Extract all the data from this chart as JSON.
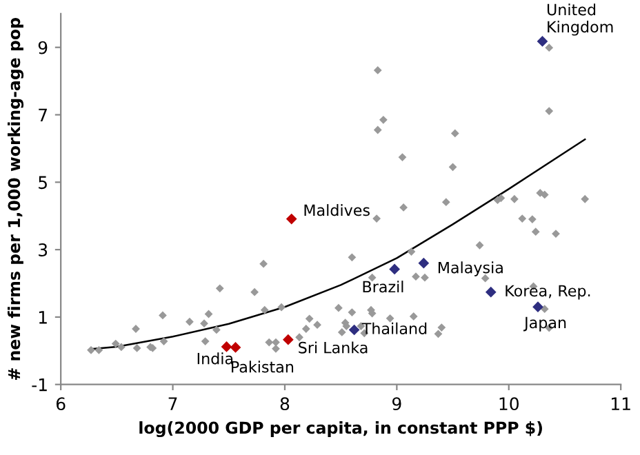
{
  "chart_data": {
    "type": "scatter",
    "xlabel": "log(2000 GDP per capita, in constant PPP $)",
    "ylabel": "# new firms per 1,000 working-age pop",
    "xlim": [
      6,
      11
    ],
    "xticks": [
      6,
      7,
      8,
      9,
      10,
      11
    ],
    "ylim": [
      -1,
      10
    ],
    "yticks": [
      -1,
      1,
      3,
      5,
      7,
      9
    ],
    "grid": false,
    "legend": false,
    "marker": "diamond",
    "series": [
      {
        "color": "#999999",
        "x": [
          8.83,
          8.88,
          8.83,
          9.52,
          9.05,
          9.5,
          9.06,
          8.82,
          9.44,
          9.9,
          9.93,
          10.05,
          10.28,
          10.32,
          10.68,
          10.12,
          10.21,
          10.24,
          10.42,
          10.36,
          10.36,
          8.6,
          9.13,
          9.74,
          8.78,
          9.17,
          9.25,
          9.79,
          10.22,
          10.32,
          10.36,
          8.48,
          8.6,
          8.77,
          8.78,
          8.94,
          9.15,
          8.54,
          8.55,
          8.68,
          8.51,
          8.71,
          9.37,
          9.4,
          6.27,
          6.34,
          6.49,
          6.54,
          6.67,
          6.68,
          6.8,
          6.82,
          6.91,
          6.92,
          7.15,
          7.28,
          7.29,
          7.32,
          7.39,
          7.42,
          7.73,
          7.81,
          7.82,
          7.86,
          7.92,
          7.92,
          7.97,
          8.13,
          8.19,
          8.22,
          8.29
        ],
        "values": [
          8.32,
          6.85,
          6.55,
          6.45,
          5.74,
          5.45,
          4.25,
          3.92,
          4.41,
          4.47,
          4.53,
          4.5,
          4.68,
          4.63,
          4.5,
          3.92,
          3.9,
          3.53,
          3.47,
          7.11,
          8.99,
          2.77,
          2.94,
          3.13,
          2.17,
          2.2,
          2.17,
          2.15,
          1.91,
          1.24,
          0.68,
          1.27,
          1.14,
          1.21,
          1.11,
          0.96,
          1.02,
          0.83,
          0.73,
          0.73,
          0.55,
          0.52,
          0.5,
          0.69,
          0.02,
          0.02,
          0.21,
          0.11,
          0.65,
          0.08,
          0.11,
          0.08,
          1.05,
          0.28,
          0.86,
          0.81,
          0.28,
          1.09,
          0.62,
          1.85,
          1.74,
          2.58,
          1.21,
          0.25,
          0.25,
          0.06,
          1.29,
          0.4,
          0.65,
          0.95,
          0.77
        ]
      },
      {
        "color": "#c00000",
        "x": [
          8.06,
          7.48,
          7.56,
          8.03
        ],
        "values": [
          3.91,
          0.12,
          0.1,
          0.33
        ]
      },
      {
        "color": "#2e2e80",
        "x": [
          10.3,
          8.62,
          8.98,
          9.24,
          9.84,
          10.26
        ],
        "values": [
          9.18,
          0.62,
          2.42,
          2.6,
          1.74,
          1.3
        ]
      },
      {
        "type": "line",
        "color": "#000000",
        "marker": "none",
        "x": [
          6.27,
          6.5,
          7,
          7.5,
          8,
          8.5,
          9,
          9.5,
          10,
          10.68
        ],
        "values": [
          0.05,
          0.12,
          0.42,
          0.8,
          1.3,
          1.95,
          2.75,
          3.75,
          4.8,
          6.27
        ]
      }
    ],
    "annotations": [
      {
        "text": "United\nKingdom",
        "x": 10.3,
        "y": 9.18
      },
      {
        "text": "Maldives",
        "x": 8.06,
        "y": 3.91
      },
      {
        "text": "Malaysia",
        "x": 9.24,
        "y": 2.6
      },
      {
        "text": "Brazil",
        "x": 8.98,
        "y": 2.42
      },
      {
        "text": "Korea, Rep.",
        "x": 9.84,
        "y": 1.74
      },
      {
        "text": "Thailand",
        "x": 8.62,
        "y": 0.62
      },
      {
        "text": "Japan",
        "x": 10.26,
        "y": 1.3
      },
      {
        "text": "India",
        "x": 7.48,
        "y": 0.12
      },
      {
        "text": "Pakistan",
        "x": 7.56,
        "y": 0.1
      },
      {
        "text": "Sri Lanka",
        "x": 8.03,
        "y": 0.33
      }
    ]
  }
}
